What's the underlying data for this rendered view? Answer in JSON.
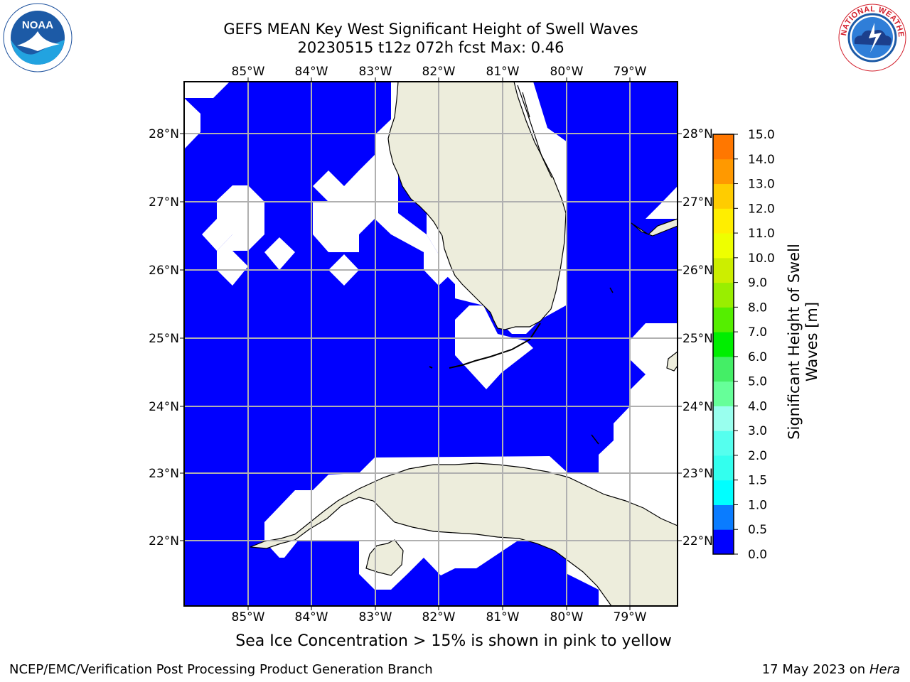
{
  "header": {
    "title_line1": "GEFS MEAN Key West Significant Height of Swell Waves",
    "title_line2": "20230515 t12z 072h fcst   Max: 0.46"
  },
  "logos": {
    "left": {
      "icon": "noaa-logo",
      "text": "NOAA"
    },
    "right": {
      "icon": "nws-logo",
      "text": "NATIONAL WEATHER SERVICE"
    }
  },
  "map": {
    "lon_labels": [
      "85°W",
      "84°W",
      "83°W",
      "82°W",
      "81°W",
      "80°W",
      "79°W"
    ],
    "lat_labels": [
      "28°N",
      "27°N",
      "26°N",
      "25°N",
      "24°N",
      "23°N",
      "22°N"
    ],
    "colors": {
      "ocean": "#0000ff",
      "land": "#ededdc",
      "nodata": "#ffffff",
      "grid": "#b0b0b0"
    }
  },
  "colorbar": {
    "title_line1": "Significant Height of Swell",
    "title_line2": "Waves [m]",
    "ticks": [
      "0.0",
      "0.5",
      "1.0",
      "1.5",
      "2.0",
      "3.0",
      "4.0",
      "5.0",
      "6.0",
      "7.0",
      "8.0",
      "9.0",
      "10.0",
      "11.0",
      "12.0",
      "13.0",
      "14.0",
      "15.0"
    ],
    "colors": [
      "#0000ff",
      "#0a7cff",
      "#00ffff",
      "#33ffee",
      "#55ffee",
      "#99ffee",
      "#66ff99",
      "#44ee66",
      "#00ee00",
      "#55ee00",
      "#99ee00",
      "#ccee00",
      "#eeff00",
      "#ffee00",
      "#ffcc00",
      "#ff9900",
      "#ff7700",
      "#ff4400",
      "#ff0000"
    ]
  },
  "footer": {
    "ice_note": "Sea Ice Concentration > 15% is shown in pink to yellow",
    "credit": "NCEP/EMC/Verification Post Processing Product Generation Branch",
    "date": "17 May 2023 on",
    "host": "Hera"
  }
}
